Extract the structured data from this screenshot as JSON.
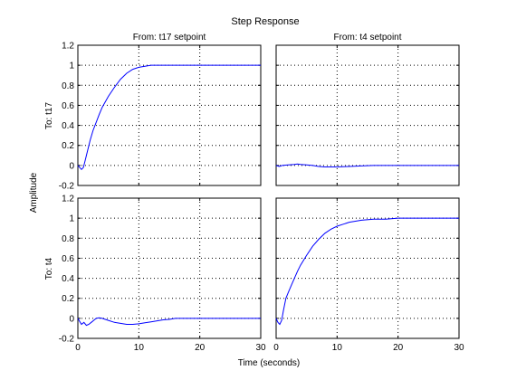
{
  "chart_data": {
    "type": "line",
    "title": "Step Response",
    "xlabel": "Time (seconds)",
    "ylabel": "Amplitude",
    "xlim": [
      0,
      30
    ],
    "ylim": [
      -0.2,
      1.2
    ],
    "xticks": [
      "0",
      "10",
      "20",
      "30"
    ],
    "yticks": [
      "-0.2",
      "0",
      "0.2",
      "0.4",
      "0.6",
      "0.8",
      "1",
      "1.2"
    ],
    "grid": true,
    "colors": {
      "line": "#0000ff",
      "grid": "#000000",
      "axes": "#000000"
    },
    "column_labels": [
      "From: t17 setpoint",
      "From: t4 setpoint"
    ],
    "row_labels": [
      "To: t17",
      "To: t4"
    ],
    "subplots": [
      {
        "row": "To: t17",
        "col": "From: t17 setpoint",
        "series": [
          {
            "x": [
              0,
              0.3,
              0.6,
              0.9,
              1.2,
              1.6,
              2,
              2.5,
              3,
              3.5,
              4,
              5,
              6,
              7,
              8,
              9,
              10,
              11,
              12,
              13,
              14,
              16,
              18,
              20,
              24.5,
              25,
              27,
              30
            ],
            "y": [
              0,
              -0.02,
              -0.04,
              -0.02,
              0.05,
              0.15,
              0.25,
              0.35,
              0.43,
              0.51,
              0.58,
              0.69,
              0.78,
              0.86,
              0.92,
              0.96,
              0.98,
              0.99,
              1.0,
              1.0,
              1.0,
              1.0,
              1.0,
              1.0,
              1.0,
              1.0,
              1.0,
              1.0
            ]
          }
        ]
      },
      {
        "row": "To: t17",
        "col": "From: t4 setpoint",
        "series": [
          {
            "x": [
              0,
              0.5,
              1,
              2,
              3,
              3.5,
              4,
              5,
              6,
              7,
              8,
              9,
              10,
              12,
              14,
              16,
              20,
              30
            ],
            "y": [
              0,
              -0.01,
              0.0,
              0.005,
              0.01,
              0.015,
              0.01,
              0.005,
              0.0,
              -0.01,
              -0.015,
              -0.015,
              -0.015,
              -0.01,
              -0.005,
              0.0,
              0.0,
              0.0
            ]
          }
        ]
      },
      {
        "row": "To: t4",
        "col": "From: t17 setpoint",
        "series": [
          {
            "x": [
              0,
              0.3,
              0.6,
              1,
              1.4,
              1.8,
              2.2,
              2.6,
              3,
              3.5,
              4,
              4.5,
              5,
              6,
              7,
              8,
              9,
              10,
              11,
              12,
              13,
              14,
              15,
              16,
              18,
              20,
              25,
              30
            ],
            "y": [
              0,
              -0.03,
              -0.06,
              -0.04,
              -0.07,
              -0.06,
              -0.04,
              -0.02,
              0.0,
              0.005,
              0.0,
              -0.01,
              -0.02,
              -0.04,
              -0.05,
              -0.06,
              -0.06,
              -0.055,
              -0.045,
              -0.035,
              -0.025,
              -0.015,
              -0.01,
              0.0,
              0.0,
              0.0,
              0.0,
              0.0
            ]
          }
        ]
      },
      {
        "row": "To: t4",
        "col": "From: t4 setpoint",
        "series": [
          {
            "x": [
              0,
              0.3,
              0.6,
              0.9,
              1.2,
              1.6,
              2,
              2.5,
              3,
              3.5,
              4,
              5,
              6,
              7,
              8,
              9,
              10,
              11,
              12,
              13,
              14,
              16,
              18,
              20,
              22,
              25,
              30
            ],
            "y": [
              0,
              -0.04,
              -0.06,
              -0.02,
              0.08,
              0.2,
              0.26,
              0.33,
              0.4,
              0.47,
              0.53,
              0.63,
              0.72,
              0.79,
              0.85,
              0.89,
              0.92,
              0.94,
              0.96,
              0.97,
              0.98,
              0.99,
              0.99,
              1.0,
              1.0,
              1.0,
              1.0
            ]
          }
        ]
      }
    ]
  }
}
